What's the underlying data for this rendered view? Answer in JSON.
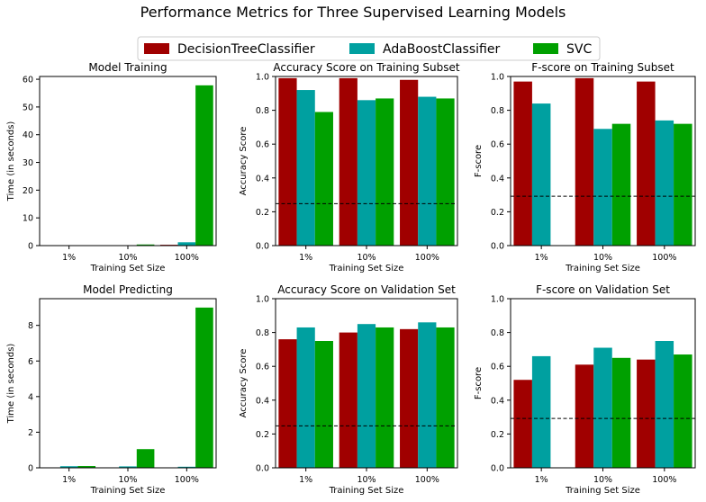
{
  "figure": {
    "title": "Performance Metrics for Three Supervised Learning Models"
  },
  "legend": {
    "placement": "top-center",
    "entries": [
      {
        "name": "DecisionTreeClassifier",
        "color": "#a00000"
      },
      {
        "name": "AdaBoostClassifier",
        "color": "#00a0a0"
      },
      {
        "name": "SVC",
        "color": "#00a000"
      }
    ]
  },
  "chart_data": [
    {
      "type": "bar",
      "title": "Model Training",
      "xlabel": "Training Set Size",
      "ylabel": "Time (in seconds)",
      "categories": [
        "1%",
        "10%",
        "100%"
      ],
      "ylim": [
        0,
        61
      ],
      "yticks": [
        0,
        10,
        20,
        30,
        40,
        50,
        60
      ],
      "ytick_labels": [
        "0",
        "10",
        "20",
        "30",
        "40",
        "50",
        "60"
      ],
      "series": [
        {
          "name": "DecisionTreeClassifier",
          "values": [
            0.0,
            0.1,
            0.3
          ]
        },
        {
          "name": "AdaBoostClassifier",
          "values": [
            0.1,
            0.1,
            1.2
          ]
        },
        {
          "name": "SVC",
          "values": [
            0.0,
            0.4,
            57.8
          ]
        }
      ]
    },
    {
      "type": "bar",
      "title": "Accuracy Score on Training Subset",
      "xlabel": "Training Set Size",
      "ylabel": "Accuracy Score",
      "categories": [
        "1%",
        "10%",
        "100%"
      ],
      "ylim": [
        0,
        1
      ],
      "yticks": [
        0,
        0.2,
        0.4,
        0.6,
        0.8,
        1.0
      ],
      "ytick_labels": [
        "0.0",
        "0.2",
        "0.4",
        "0.6",
        "0.8",
        "1.0"
      ],
      "baseline": 0.2478,
      "series": [
        {
          "name": "DecisionTreeClassifier",
          "values": [
            0.99,
            0.99,
            0.98
          ]
        },
        {
          "name": "AdaBoostClassifier",
          "values": [
            0.92,
            0.86,
            0.88
          ]
        },
        {
          "name": "SVC",
          "values": [
            0.79,
            0.87,
            0.87
          ]
        }
      ]
    },
    {
      "type": "bar",
      "title": "F-score on Training Subset",
      "xlabel": "Training Set Size",
      "ylabel": "F-score",
      "categories": [
        "1%",
        "10%",
        "100%"
      ],
      "ylim": [
        0,
        1
      ],
      "yticks": [
        0,
        0.2,
        0.4,
        0.6,
        0.8,
        1.0
      ],
      "ytick_labels": [
        "0.0",
        "0.2",
        "0.4",
        "0.6",
        "0.8",
        "1.0"
      ],
      "baseline": 0.2917,
      "series": [
        {
          "name": "DecisionTreeClassifier",
          "values": [
            0.97,
            0.99,
            0.97
          ]
        },
        {
          "name": "AdaBoostClassifier",
          "values": [
            0.84,
            0.69,
            0.74
          ]
        },
        {
          "name": "SVC",
          "values": [
            0.0,
            0.72,
            0.72
          ]
        }
      ]
    },
    {
      "type": "bar",
      "title": "Model Predicting",
      "xlabel": "Training Set Size",
      "ylabel": "Time (in seconds)",
      "categories": [
        "1%",
        "10%",
        "100%"
      ],
      "ylim": [
        0,
        9.5
      ],
      "yticks": [
        0,
        2,
        4,
        6,
        8
      ],
      "ytick_labels": [
        "0",
        "2",
        "4",
        "6",
        "8"
      ],
      "series": [
        {
          "name": "DecisionTreeClassifier",
          "values": [
            0.01,
            0.01,
            0.01
          ]
        },
        {
          "name": "AdaBoostClassifier",
          "values": [
            0.09,
            0.08,
            0.06
          ]
        },
        {
          "name": "SVC",
          "values": [
            0.1,
            1.05,
            9.0
          ]
        }
      ]
    },
    {
      "type": "bar",
      "title": "Accuracy Score on Validation Set",
      "xlabel": "Training Set Size",
      "ylabel": "Accuracy Score",
      "categories": [
        "1%",
        "10%",
        "100%"
      ],
      "ylim": [
        0,
        1
      ],
      "yticks": [
        0,
        0.2,
        0.4,
        0.6,
        0.8,
        1.0
      ],
      "ytick_labels": [
        "0.0",
        "0.2",
        "0.4",
        "0.6",
        "0.8",
        "1.0"
      ],
      "baseline": 0.2478,
      "series": [
        {
          "name": "DecisionTreeClassifier",
          "values": [
            0.76,
            0.8,
            0.82
          ]
        },
        {
          "name": "AdaBoostClassifier",
          "values": [
            0.83,
            0.85,
            0.86
          ]
        },
        {
          "name": "SVC",
          "values": [
            0.75,
            0.83,
            0.83
          ]
        }
      ]
    },
    {
      "type": "bar",
      "title": "F-score on Validation Set",
      "xlabel": "Training Set Size",
      "ylabel": "F-score",
      "categories": [
        "1%",
        "10%",
        "100%"
      ],
      "ylim": [
        0,
        1
      ],
      "yticks": [
        0,
        0.2,
        0.4,
        0.6,
        0.8,
        1.0
      ],
      "ytick_labels": [
        "0.0",
        "0.2",
        "0.4",
        "0.6",
        "0.8",
        "1.0"
      ],
      "baseline": 0.2917,
      "series": [
        {
          "name": "DecisionTreeClassifier",
          "values": [
            0.52,
            0.61,
            0.64
          ]
        },
        {
          "name": "AdaBoostClassifier",
          "values": [
            0.66,
            0.71,
            0.75
          ]
        },
        {
          "name": "SVC",
          "values": [
            0.0,
            0.65,
            0.67
          ]
        }
      ]
    }
  ]
}
